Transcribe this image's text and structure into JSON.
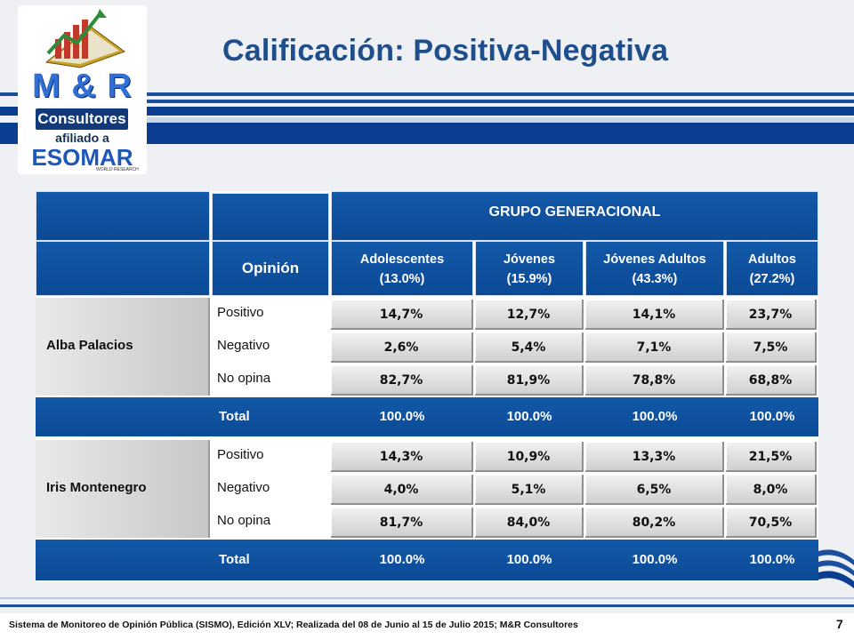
{
  "slide": {
    "title": "Calificación: Positiva-Negativa",
    "page_number": "7",
    "footer": "Sistema de Monitoreo de Opinión Pública (SISMO), Edición XLV; Realizada del 08 de Junio al 15 de Julio 2015; M&R Consultores"
  },
  "logo": {
    "brand": "M & R",
    "consultores": "Consultores",
    "afiliado": "afiliado a",
    "esomar": "ESOMAR",
    "world_research": "WORLD RESEARCH"
  },
  "colors": {
    "header_blue": "#0b4a96",
    "title_blue": "#1f4e8c"
  },
  "table": {
    "group_header": "GRUPO GENERACIONAL",
    "opinion_header": "Opinión",
    "columns": [
      {
        "label": "Adolescentes",
        "share": "(13.0%)"
      },
      {
        "label": "Jóvenes",
        "share": "(15.9%)"
      },
      {
        "label": "Jóvenes Adultos",
        "share": "(43.3%)"
      },
      {
        "label": "Adultos",
        "share": "(27.2%)"
      }
    ],
    "groups": [
      {
        "name": "Alba Palacios",
        "rows": [
          {
            "opinion": "Positivo",
            "values": [
              "14,7%",
              "12,7%",
              "14,1%",
              "23,7%"
            ]
          },
          {
            "opinion": "Negativo",
            "values": [
              "2,6%",
              "5,4%",
              "7,1%",
              "7,5%"
            ]
          },
          {
            "opinion": "No opina",
            "values": [
              "82,7%",
              "81,9%",
              "78,8%",
              "68,8%"
            ]
          }
        ],
        "total_label": "Total",
        "totals": [
          "100.0%",
          "100.0%",
          "100.0%",
          "100.0%"
        ]
      },
      {
        "name": "Iris Montenegro",
        "rows": [
          {
            "opinion": "Positivo",
            "values": [
              "14,3%",
              "10,9%",
              "13,3%",
              "21,5%"
            ]
          },
          {
            "opinion": "Negativo",
            "values": [
              "4,0%",
              "5,1%",
              "6,5%",
              "8,0%"
            ]
          },
          {
            "opinion": "No opina",
            "values": [
              "81,7%",
              "84,0%",
              "80,2%",
              "70,5%"
            ]
          }
        ],
        "total_label": "Total",
        "totals": [
          "100.0%",
          "100.0%",
          "100.0%",
          "100.0%"
        ]
      }
    ]
  }
}
